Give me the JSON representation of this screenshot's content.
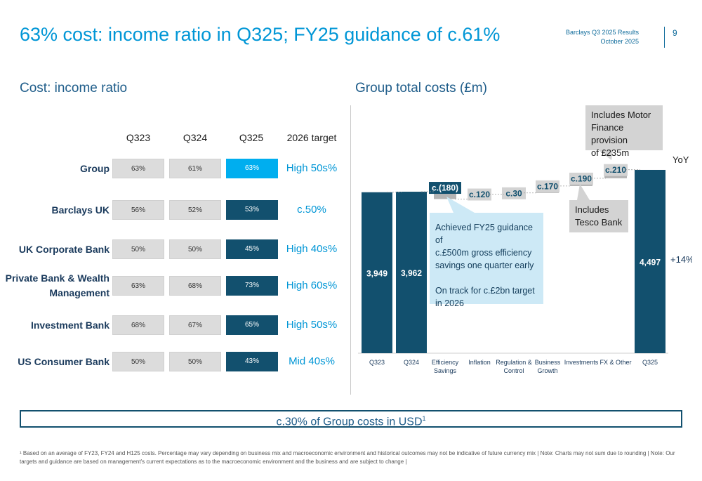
{
  "header": {
    "title": "63% cost: income ratio in Q325; FY25 guidance of c.61%",
    "doc_name": "Barclays Q3 2025 Results",
    "doc_date": "October 2025",
    "page_number": "9"
  },
  "cir": {
    "section_title": "Cost: income ratio",
    "columns": [
      "Q323",
      "Q324",
      "Q325",
      "2026 target"
    ],
    "rows": [
      {
        "label_lines": [
          "Group"
        ],
        "q323": "63%",
        "q324": "61%",
        "q325": "63%",
        "target": "High 50s%"
      },
      {
        "label_lines": [
          "Barclays UK"
        ],
        "q323": "56%",
        "q324": "52%",
        "q325": "53%",
        "target": "c.50%"
      },
      {
        "label_lines": [
          "UK Corporate Bank"
        ],
        "q323": "50%",
        "q324": "50%",
        "q325": "45%",
        "target": "High 40s%"
      },
      {
        "label_lines": [
          "Private Bank & Wealth",
          "Management"
        ],
        "q323": "63%",
        "q324": "68%",
        "q325": "73%",
        "target": "High 60s%"
      },
      {
        "label_lines": [
          "Investment Bank"
        ],
        "q323": "68%",
        "q324": "67%",
        "q325": "65%",
        "target": "High 50s%"
      },
      {
        "label_lines": [
          "US Consumer Bank"
        ],
        "q323": "50%",
        "q324": "50%",
        "q325": "43%",
        "target": "Mid 40s%"
      }
    ]
  },
  "colors": {
    "dark_blue": "#12506e",
    "bright_blue": "#00aeef",
    "grey_cell": "#dcdcdc",
    "accent_text": "#0096d6",
    "step_grey": "#b4b4b4"
  },
  "chart_data": {
    "type": "waterfall",
    "title": "Group total costs (£m)",
    "units": "£m",
    "categories": [
      "Q323",
      "Q324",
      "Efficiency Savings",
      "Inflation",
      "Regulation & Control",
      "Business Growth",
      "Investments",
      "FX & Other",
      "Q325"
    ],
    "category_label_lines": [
      [
        "Q323"
      ],
      [
        "Q324"
      ],
      [
        "Efficiency",
        "Savings"
      ],
      [
        "Inflation"
      ],
      [
        "Regulation &",
        "Control"
      ],
      [
        "Business",
        "Growth"
      ],
      [
        "Investments"
      ],
      [
        "FX & Other"
      ],
      [
        "Q325"
      ]
    ],
    "bars": [
      {
        "kind": "total",
        "value": 3949,
        "label": "3,949"
      },
      {
        "kind": "total",
        "value": 3962,
        "label": "3,962"
      },
      {
        "kind": "step",
        "value": -180,
        "label": "c.(180)"
      },
      {
        "kind": "step",
        "value": 120,
        "label": "c.120"
      },
      {
        "kind": "step",
        "value": 30,
        "label": "c.30"
      },
      {
        "kind": "step",
        "value": 170,
        "label": "c.170"
      },
      {
        "kind": "step",
        "value": 190,
        "label": "c.190"
      },
      {
        "kind": "step",
        "value": 210,
        "label": "c.210"
      },
      {
        "kind": "total",
        "value": 4497,
        "label": "4,497"
      }
    ],
    "yoy_label": "YoY",
    "yoy_value": "+14%",
    "ylim": [
      0,
      4600
    ]
  },
  "callouts": {
    "efficiency": [
      "Achieved FY25 guidance of",
      "c.£500m gross efficiency",
      "savings one quarter early",
      "",
      "On track for c.£2bn target",
      "in 2026"
    ],
    "tesco": [
      "Includes",
      "Tesco Bank"
    ],
    "motor": [
      "Includes Motor",
      "Finance provision",
      "of £235m"
    ]
  },
  "usd_banner": {
    "text": "c.30% of Group costs in USD",
    "superscript": "1"
  },
  "footnote": "¹ Based on an average of FY23, FY24 and H125 costs. Percentage may vary depending on business mix and macroeconomic environment and historical outcomes may not be indicative of future currency mix | Note: Charts may not sum due to rounding | Note: Our targets and guidance are based on management's current expectations as to the macroeconomic environment and the business and are subject to change |"
}
